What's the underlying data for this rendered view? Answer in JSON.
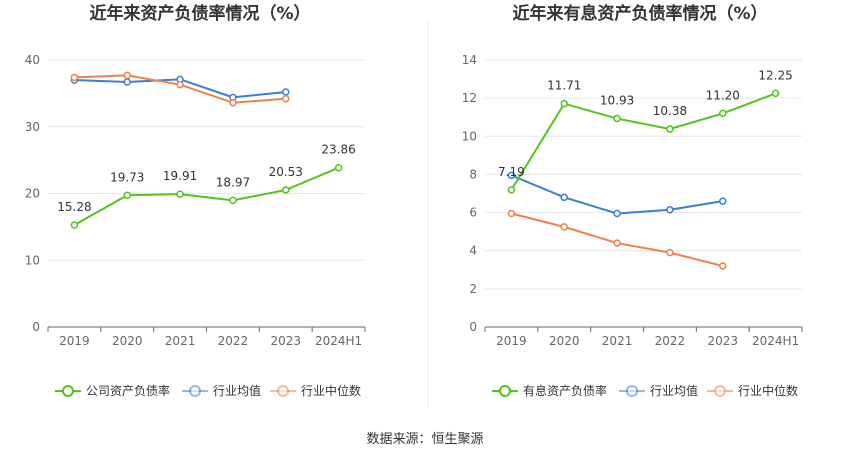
{
  "source": "数据来源：恒生聚源",
  "chart_data": [
    {
      "type": "line",
      "title": "近年来资产负债率情况（%）",
      "categories": [
        "2019",
        "2020",
        "2021",
        "2022",
        "2023",
        "2024H1"
      ],
      "ylim": [
        0,
        40
      ],
      "yticks": [
        0,
        10,
        20,
        30,
        40
      ],
      "grid": true,
      "legend_position": "bottom",
      "series": [
        {
          "name": "公司资产负债率",
          "color": "#52c41a",
          "labels": true,
          "values": [
            15.28,
            19.73,
            19.91,
            18.97,
            20.53,
            23.86
          ],
          "value_labels": [
            "15.28",
            "19.73",
            "19.91",
            "18.97",
            "20.53",
            "23.86"
          ]
        },
        {
          "name": "行业均值",
          "color": "#3a7ddb",
          "labels": false,
          "values": [
            37.0,
            36.7,
            37.1,
            34.4,
            35.2,
            null
          ]
        },
        {
          "name": "行业中位数",
          "color": "#f0804a",
          "labels": false,
          "values": [
            37.4,
            37.7,
            36.3,
            33.6,
            34.2,
            null
          ]
        }
      ]
    },
    {
      "type": "line",
      "title": "近年来有息资产负债率情况（%）",
      "categories": [
        "2019",
        "2020",
        "2021",
        "2022",
        "2023",
        "2024H1"
      ],
      "ylim": [
        0,
        14
      ],
      "yticks": [
        0,
        2,
        4,
        6,
        8,
        10,
        12,
        14
      ],
      "grid": true,
      "legend_position": "bottom",
      "series": [
        {
          "name": "有息资产负债率",
          "color": "#52c41a",
          "labels": true,
          "values": [
            7.19,
            11.71,
            10.93,
            10.38,
            11.2,
            12.25
          ],
          "value_labels": [
            "7.19",
            "11.71",
            "10.93",
            "10.38",
            "11.20",
            "12.25"
          ]
        },
        {
          "name": "行业均值",
          "color": "#3a7ddb",
          "labels": false,
          "values": [
            7.95,
            6.8,
            5.95,
            6.15,
            6.6,
            null
          ]
        },
        {
          "name": "行业中位数",
          "color": "#f0804a",
          "labels": false,
          "values": [
            5.95,
            5.25,
            4.4,
            3.9,
            3.2,
            null
          ]
        }
      ]
    }
  ]
}
